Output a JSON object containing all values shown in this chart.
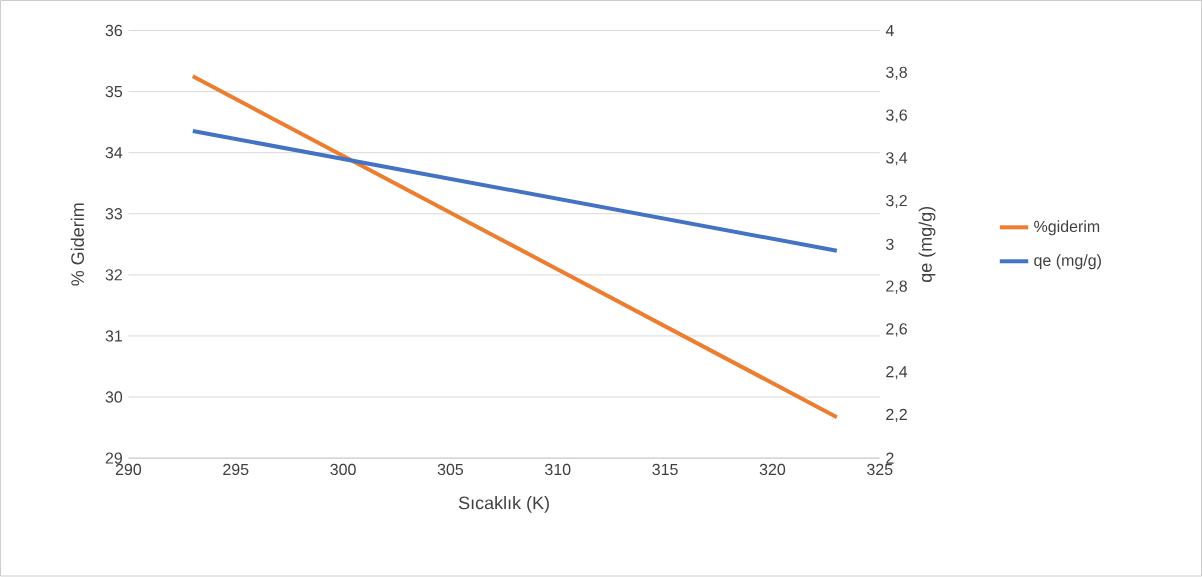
{
  "chart_data": {
    "type": "line",
    "xlabel": "Sıcaklık (K)",
    "ylabel": "% Giderim",
    "y2label": "qe (mg/g)",
    "x": [
      293,
      323
    ],
    "series": [
      {
        "name": "%giderim",
        "color": "#ed7d31",
        "values": [
          35.25,
          29.67
        ]
      },
      {
        "name": "qe (mg/g)",
        "color": "#4472c4",
        "axis": "y2",
        "values": [
          3.53,
          2.97
        ]
      }
    ],
    "xlim": [
      290,
      325
    ],
    "xticks": [
      290,
      295,
      300,
      305,
      310,
      315,
      320,
      325
    ],
    "ylim": [
      29,
      36
    ],
    "yticks": [
      29,
      30,
      31,
      32,
      33,
      34,
      35,
      36
    ],
    "y2lim": [
      2,
      4
    ],
    "y2ticks": [
      {
        "value": 2,
        "label": "2"
      },
      {
        "value": 2.2,
        "label": "2,2"
      },
      {
        "value": 2.4,
        "label": "2,4"
      },
      {
        "value": 2.6,
        "label": "2,6"
      },
      {
        "value": 2.8,
        "label": "2,8"
      },
      {
        "value": 3,
        "label": "3"
      },
      {
        "value": 3.2,
        "label": "3,2"
      },
      {
        "value": 3.4,
        "label": "3,4"
      },
      {
        "value": 3.6,
        "label": "3,6"
      },
      {
        "value": 3.8,
        "label": "3,8"
      },
      {
        "value": 4,
        "label": "4"
      }
    ],
    "grid": "y",
    "legend": "right",
    "marker": "none",
    "line_style": "solid"
  }
}
